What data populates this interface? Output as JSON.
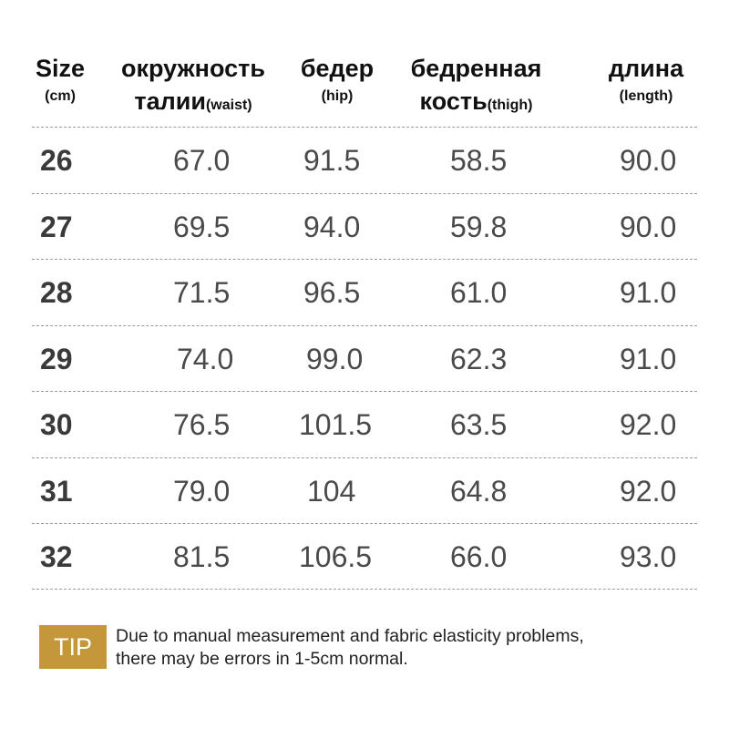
{
  "headers": [
    {
      "main": "Size",
      "sub": "(cm)"
    },
    {
      "main": "окружность",
      "second_main": "талии",
      "sub": "(waist)"
    },
    {
      "main": "бедер",
      "sub": "(hip)"
    },
    {
      "main": "бедренная",
      "second_main": "кость",
      "sub": "(thigh)"
    },
    {
      "main": "длина",
      "sub": "(length)"
    }
  ],
  "rows": [
    {
      "size": "26",
      "waist": "67.0",
      "hip": "91.5",
      "thigh": "58.5",
      "length": "90.0"
    },
    {
      "size": "27",
      "waist": "69.5",
      "hip": "94.0",
      "thigh": "59.8",
      "length": "90.0"
    },
    {
      "size": "28",
      "waist": "71.5",
      "hip": "96.5",
      "thigh": "61.0",
      "length": "91.0"
    },
    {
      "size": "29",
      "waist": "74.0",
      "hip": "99.0",
      "thigh": "62.3",
      "length": "91.0"
    },
    {
      "size": "30",
      "waist": "76.5",
      "hip": "101.5",
      "thigh": "63.5",
      "length": "92.0"
    },
    {
      "size": "31",
      "waist": "79.0",
      "hip": "104",
      "thigh": "64.8",
      "length": "92.0"
    },
    {
      "size": "32",
      "waist": "81.5",
      "hip": "106.5",
      "thigh": "66.0",
      "length": "93.0"
    }
  ],
  "tip": {
    "label": "TIP",
    "line1": "Due to manual measurement and fabric elasticity problems,",
    "line2": "there may be errors in 1-5cm normal."
  },
  "colors": {
    "tip_badge": "#c4973a",
    "rule": "#9a9a9a",
    "value_text": "#4a4a4a"
  }
}
